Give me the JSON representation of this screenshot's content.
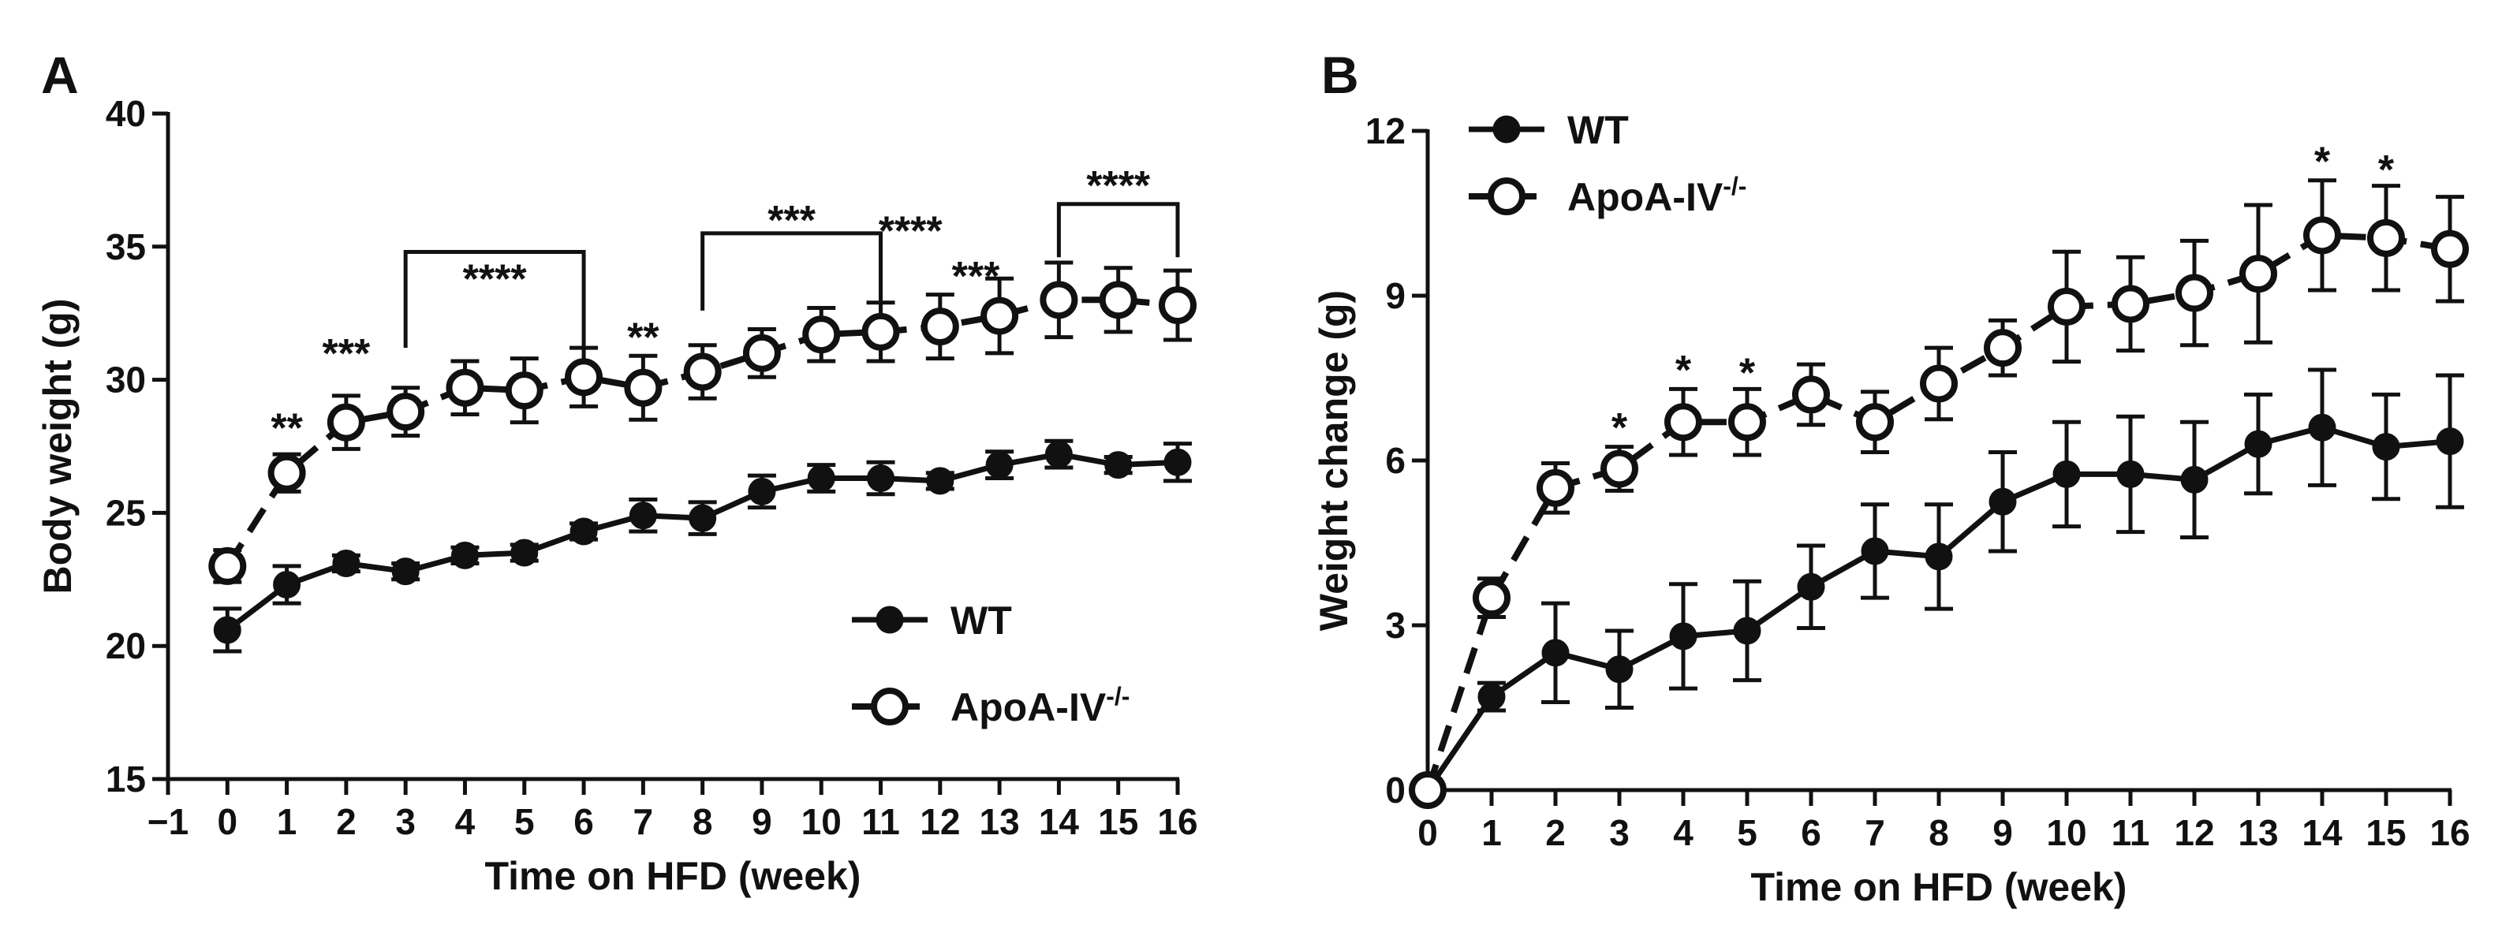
{
  "chart_data": [
    {
      "type": "line",
      "panel_label": "A",
      "xlabel": "Time on HFD (week)",
      "ylabel": "Body weight (g)",
      "xlim": [
        -1,
        16
      ],
      "ylim": [
        15,
        40
      ],
      "xticks": [
        "−1",
        "0",
        "1",
        "2",
        "3",
        "4",
        "5",
        "6",
        "7",
        "8",
        "9",
        "10",
        "11",
        "12",
        "13",
        "14",
        "15",
        "16"
      ],
      "xtick_values": [
        -1,
        0,
        1,
        2,
        3,
        4,
        5,
        6,
        7,
        8,
        9,
        10,
        11,
        12,
        13,
        14,
        15,
        16
      ],
      "yticks": [
        "15",
        "20",
        "25",
        "30",
        "35",
        "40"
      ],
      "ytick_values": [
        15,
        20,
        25,
        30,
        35,
        40
      ],
      "legend_position": "bottom-right",
      "series": [
        {
          "name": "WT",
          "marker": "filled",
          "x": [
            0,
            1,
            2,
            3,
            4,
            5,
            6,
            7,
            8,
            9,
            10,
            11,
            12,
            13,
            14,
            15,
            16
          ],
          "values": [
            20.6,
            22.3,
            23.1,
            22.8,
            23.4,
            23.5,
            24.3,
            24.9,
            24.8,
            25.8,
            26.3,
            26.3,
            26.2,
            26.8,
            27.2,
            26.8,
            26.9
          ],
          "error": [
            0.8,
            0.7,
            0.3,
            0.3,
            0.3,
            0.3,
            0.3,
            0.6,
            0.6,
            0.6,
            0.5,
            0.6,
            0.3,
            0.5,
            0.5,
            0.3,
            0.7
          ]
        },
        {
          "name": "ApoA-IV",
          "name_superscript": "-/-",
          "marker": "open",
          "x": [
            0,
            1,
            2,
            3,
            4,
            5,
            6,
            7,
            8,
            9,
            10,
            11,
            12,
            13,
            14,
            15,
            16
          ],
          "values": [
            23.0,
            26.5,
            28.4,
            28.8,
            29.7,
            29.6,
            30.1,
            29.7,
            30.3,
            31.0,
            31.7,
            31.8,
            32.0,
            32.4,
            33.0,
            33.0,
            32.8
          ],
          "error": [
            0.6,
            0.7,
            1.0,
            0.9,
            1.0,
            1.2,
            1.1,
            1.2,
            1.0,
            0.9,
            1.0,
            1.1,
            1.2,
            1.4,
            1.4,
            1.2,
            1.3
          ]
        }
      ],
      "annotations": [
        {
          "text": "**",
          "x": 1,
          "y": 28.2
        },
        {
          "text": "***",
          "x": 2,
          "y": 31.0
        },
        {
          "text": "****",
          "x": 4.5,
          "y": 33.8
        },
        {
          "text": "**",
          "x": 7,
          "y": 31.6
        },
        {
          "text": "***",
          "x": 9.5,
          "y": 36.0
        },
        {
          "text": "****",
          "x": 11.5,
          "y": 35.6
        },
        {
          "text": "***",
          "x": 12.6,
          "y": 33.9
        },
        {
          "text": "****",
          "x": 15,
          "y": 37.3
        }
      ],
      "brackets": [
        {
          "x_start": 3,
          "x_end": 6,
          "y": 34.8,
          "y_bottom": 31.2
        },
        {
          "x_start": 8,
          "x_end": 11,
          "y": 35.5,
          "y_bottom": 32.6
        },
        {
          "x_start": 14,
          "x_end": 16,
          "y": 36.6,
          "y_bottom": 34.6
        }
      ]
    },
    {
      "type": "line",
      "panel_label": "B",
      "xlabel": "Time on HFD (week)",
      "ylabel": "Weight change (g)",
      "xlim": [
        0,
        16
      ],
      "ylim": [
        0,
        12
      ],
      "xticks": [
        "0",
        "1",
        "2",
        "3",
        "4",
        "5",
        "6",
        "7",
        "8",
        "9",
        "10",
        "11",
        "12",
        "13",
        "14",
        "15",
        "16"
      ],
      "xtick_values": [
        0,
        1,
        2,
        3,
        4,
        5,
        6,
        7,
        8,
        9,
        10,
        11,
        12,
        13,
        14,
        15,
        16
      ],
      "yticks": [
        "0",
        "3",
        "6",
        "9",
        "12"
      ],
      "ytick_values": [
        0,
        3,
        6,
        9,
        12
      ],
      "legend_position": "top-left",
      "series": [
        {
          "name": "WT",
          "marker": "filled",
          "x": [
            0,
            1,
            2,
            3,
            4,
            5,
            6,
            7,
            8,
            9,
            10,
            11,
            12,
            13,
            14,
            15,
            16
          ],
          "values": [
            0,
            1.7,
            2.5,
            2.2,
            2.8,
            2.9,
            3.7,
            4.35,
            4.25,
            5.25,
            5.75,
            5.75,
            5.65,
            6.3,
            6.6,
            6.25,
            6.35
          ],
          "error": [
            0,
            0.25,
            0.9,
            0.7,
            0.95,
            0.9,
            0.75,
            0.85,
            0.95,
            0.9,
            0.95,
            1.05,
            1.05,
            0.9,
            1.05,
            0.95,
            1.2
          ]
        },
        {
          "name": "ApoA-IV",
          "name_superscript": "-/-",
          "marker": "open",
          "x": [
            0,
            1,
            2,
            3,
            4,
            5,
            6,
            7,
            8,
            9,
            10,
            11,
            12,
            13,
            14,
            15,
            16
          ],
          "values": [
            0,
            3.5,
            5.5,
            5.85,
            6.7,
            6.7,
            7.2,
            6.7,
            7.4,
            8.05,
            8.8,
            8.85,
            9.05,
            9.4,
            10.1,
            10.05,
            9.85
          ],
          "error": [
            0,
            0.35,
            0.45,
            0.4,
            0.6,
            0.6,
            0.55,
            0.55,
            0.65,
            0.5,
            1.0,
            0.85,
            0.95,
            1.25,
            1.0,
            0.95,
            0.95
          ]
        }
      ],
      "annotations": [
        {
          "text": "*",
          "x": 3,
          "y": 6.6
        },
        {
          "text": "*",
          "x": 4,
          "y": 7.65
        },
        {
          "text": "*",
          "x": 5,
          "y": 7.6
        },
        {
          "text": "*",
          "x": 14,
          "y": 11.45
        },
        {
          "text": "*",
          "x": 15,
          "y": 11.3
        }
      ],
      "brackets": []
    }
  ]
}
